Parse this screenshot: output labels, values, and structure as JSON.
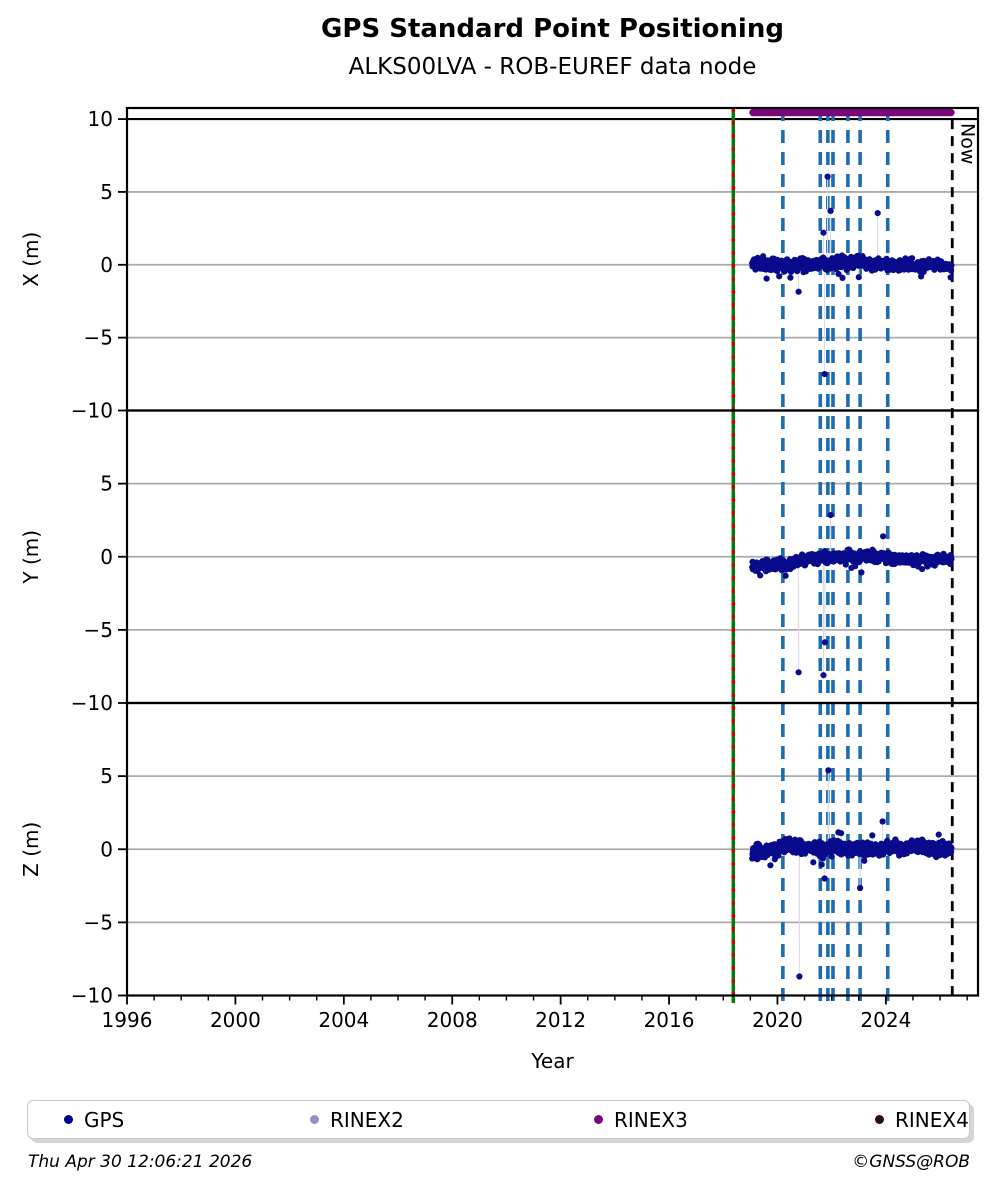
{
  "header": {
    "title": "GPS Standard Point Positioning",
    "subtitle": "ALKS00LVA - ROB-EUREF data node"
  },
  "legend": {
    "items": [
      {
        "label": "GPS",
        "color": "#00008b"
      },
      {
        "label": "RINEX2",
        "color": "#9191cf"
      },
      {
        "label": "RINEX3",
        "color": "#7a077a"
      },
      {
        "label": "RINEX4",
        "color": "#2b0a26"
      }
    ]
  },
  "footer": {
    "timestamp": "Thu Apr 30 12:06:21 2026",
    "copyright": "©GNSS@ROB"
  },
  "chart_data": {
    "type": "scatter",
    "title": "GPS Standard Point Positioning",
    "subtitle": "ALKS00LVA - ROB-EUREF data node",
    "xlabel": "Year",
    "xlim": [
      1996,
      2027.4
    ],
    "x_major_ticks": [
      1996,
      2000,
      2004,
      2008,
      2012,
      2016,
      2020,
      2024
    ],
    "x_minor_step": 1,
    "gridlines_y": [
      5,
      0,
      -5
    ],
    "grid_color": "#ababab",
    "point_color": "#0a0a8c",
    "trace_color": "#dcdce9",
    "panels": [
      {
        "ylabel": "X (m)",
        "ylim": [
          -10,
          10.76
        ],
        "ytick_values": [
          10,
          5,
          0,
          -5,
          -10
        ],
        "boundary_line_y": 10,
        "band": {
          "x_start": 2019.07,
          "x_end": 2026.42,
          "n": 680,
          "spread": 0.3,
          "seed": 11,
          "trend": [
            [
              2019.07,
              0.05
            ],
            [
              2020.6,
              0.2
            ],
            [
              2021.6,
              0.05
            ],
            [
              2022.6,
              0.15
            ],
            [
              2024.0,
              0.0
            ],
            [
              2026.42,
              -0.05
            ]
          ]
        },
        "outliers": [
          [
            2021.85,
            6.05
          ],
          [
            2021.96,
            3.7
          ],
          [
            2023.7,
            3.55
          ],
          [
            2021.7,
            2.2
          ],
          [
            2020.78,
            -1.85
          ],
          [
            2021.74,
            -7.5
          ],
          [
            2022.4,
            -0.9
          ],
          [
            2023.0,
            -0.85
          ],
          [
            2019.6,
            -0.95
          ],
          [
            2025.3,
            -0.8
          ]
        ]
      },
      {
        "ylabel": "Y (m)",
        "ylim": [
          -10,
          10
        ],
        "ytick_values": [
          5,
          0,
          -5,
          -10
        ],
        "band": {
          "x_start": 2019.07,
          "x_end": 2026.42,
          "n": 680,
          "spread": 0.27,
          "seed": 22,
          "trend": [
            [
              2019.07,
              -0.5
            ],
            [
              2020.5,
              -0.3
            ],
            [
              2021.8,
              -0.05
            ],
            [
              2023.3,
              0.0
            ],
            [
              2024.5,
              -0.15
            ],
            [
              2026.42,
              -0.2
            ]
          ]
        },
        "outliers": [
          [
            2021.96,
            2.85
          ],
          [
            2023.9,
            1.4
          ],
          [
            2020.78,
            -7.9
          ],
          [
            2021.7,
            -8.1
          ],
          [
            2021.75,
            -5.85
          ],
          [
            2020.3,
            -1.3
          ]
        ]
      },
      {
        "ylabel": "Z (m)",
        "ylim": [
          -10,
          10
        ],
        "ytick_values": [
          5,
          0,
          -5,
          -10
        ],
        "band": {
          "x_start": 2019.07,
          "x_end": 2026.42,
          "n": 680,
          "spread": 0.36,
          "seed": 33,
          "trend": [
            [
              2019.07,
              -0.3
            ],
            [
              2020.2,
              0.1
            ],
            [
              2026.42,
              0.1
            ]
          ]
        },
        "outliers": [
          [
            2021.88,
            5.4
          ],
          [
            2023.88,
            1.9
          ],
          [
            2025.95,
            1.0
          ],
          [
            2022.25,
            1.15
          ],
          [
            2022.35,
            1.1
          ],
          [
            2023.5,
            0.95
          ],
          [
            2021.74,
            -2.0
          ],
          [
            2023.05,
            -2.65
          ],
          [
            2020.81,
            -8.7
          ],
          [
            2019.74,
            -1.1
          ],
          [
            2021.63,
            -1.05
          ]
        ]
      }
    ],
    "vlines": {
      "event_green_red": {
        "x": 2018.37,
        "green": "#007a00",
        "red": "#cc0000"
      },
      "blue_dashed": {
        "xs": [
          2020.2,
          2021.58,
          2021.86,
          2022.05,
          2022.6,
          2023.05,
          2024.07
        ],
        "color": "#1e6db3"
      },
      "now": {
        "x": 2026.45,
        "label": "Now",
        "color": "#000000"
      }
    },
    "availability_bar": {
      "series": "RINEX3",
      "x_start": 2019.1,
      "x_end": 2026.4,
      "y": 10.45,
      "color": "#7a077a"
    },
    "legend_position": "bottom",
    "grid": "horizontal-only"
  }
}
